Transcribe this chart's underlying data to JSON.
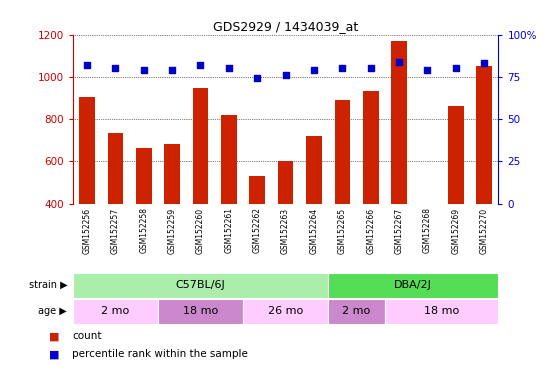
{
  "title": "GDS2929 / 1434039_at",
  "samples": [
    "GSM152256",
    "GSM152257",
    "GSM152258",
    "GSM152259",
    "GSM152260",
    "GSM152261",
    "GSM152262",
    "GSM152263",
    "GSM152264",
    "GSM152265",
    "GSM152266",
    "GSM152267",
    "GSM152268",
    "GSM152269",
    "GSM152270"
  ],
  "counts": [
    905,
    735,
    665,
    680,
    945,
    820,
    530,
    600,
    720,
    890,
    935,
    1170,
    400,
    860,
    1050
  ],
  "percentile_ranks": [
    82,
    80,
    79,
    79,
    82,
    80,
    74,
    76,
    79,
    80,
    80,
    84,
    79,
    80,
    83
  ],
  "ylim_left": [
    400,
    1200
  ],
  "ylim_right": [
    0,
    100
  ],
  "yticks_left": [
    400,
    600,
    800,
    1000,
    1200
  ],
  "yticks_right": [
    0,
    25,
    50,
    75,
    100
  ],
  "bar_color": "#cc2200",
  "dot_color": "#0000cc",
  "strain_groups": [
    {
      "label": "C57BL/6J",
      "start": 0,
      "end": 9,
      "color": "#aaeea a"
    },
    {
      "label": "DBA/2J",
      "start": 9,
      "end": 15,
      "color": "#55dd55"
    }
  ],
  "age_groups": [
    {
      "label": "2 mo",
      "start": 0,
      "end": 3,
      "color": "#ffccff"
    },
    {
      "label": "18 mo",
      "start": 3,
      "end": 6,
      "color": "#dd88dd"
    },
    {
      "label": "26 mo",
      "start": 6,
      "end": 9,
      "color": "#dd88dd"
    },
    {
      "label": "2 mo",
      "start": 9,
      "end": 11,
      "color": "#ffccff"
    },
    {
      "label": "18 mo",
      "start": 11,
      "end": 15,
      "color": "#dd88dd"
    }
  ],
  "bg_color": "#ffffff",
  "bar_color_hex": "#cc2200",
  "dot_color_hex": "#0000cc",
  "left_tick_color": "#cc0000",
  "right_tick_color": "#0000cc"
}
